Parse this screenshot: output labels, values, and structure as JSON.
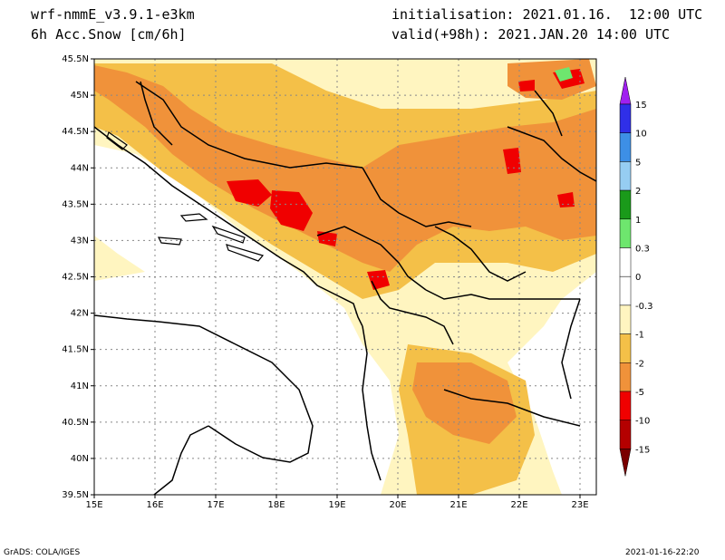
{
  "header": {
    "model": "wrf-nmmE_v3.9.1-e3km",
    "field": "6h Acc.Snow [cm/6h]",
    "init": "initialisation: 2021.01.16.  12:00 UTC",
    "valid": "valid(+98h): 2021.JAN.20 14:00 UTC"
  },
  "map": {
    "lat_labels": [
      "45.5N",
      "45N",
      "44.5N",
      "44N",
      "43.5N",
      "43N",
      "42.5N",
      "42N",
      "41.5N",
      "41N",
      "40.5N",
      "40N",
      "39.5N"
    ],
    "lon_labels": [
      "15E",
      "16E",
      "17E",
      "18E",
      "19E",
      "20E",
      "21E",
      "22E",
      "23E"
    ]
  },
  "legend": {
    "levels": [
      "15",
      "10",
      "5",
      "2",
      "1",
      "0.3",
      "0",
      "-0.3",
      "-1",
      "-2",
      "-5",
      "-10",
      "-15"
    ],
    "colors": [
      "#2f2fe8",
      "#3d8fe6",
      "#96cdf2",
      "#1a9a1a",
      "#6ee66e",
      "#ffffff",
      "#ffffff",
      "#fff5c0",
      "#f4c048",
      "#f0923a",
      "#f00000",
      "#b40000"
    ],
    "top_color": "#a020f0",
    "bottom_color": "#7a0000"
  },
  "footer": {
    "left": "GrADS: COLA/IGES",
    "right": "2021-01-16-22:20"
  }
}
